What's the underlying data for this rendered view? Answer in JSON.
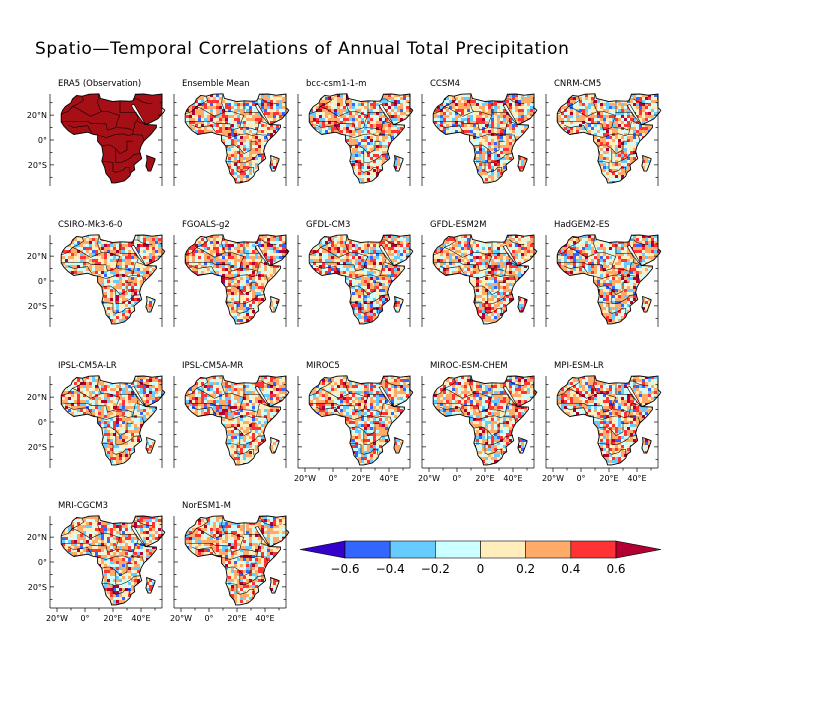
{
  "figure": {
    "title": "Spatio—Temporal Correlations of Annual Total Precipitation"
  },
  "axes": {
    "lat_ticks": [
      "20°N",
      "0°",
      "20°S"
    ],
    "lon_ticks": [
      "20°W",
      "0°",
      "20°E",
      "40°E"
    ]
  },
  "panels": [
    {
      "title": "ERA5 (Observation)",
      "field": "uniform-high"
    },
    {
      "title": "Ensemble Mean",
      "field": "mixed"
    },
    {
      "title": "bcc-csm1-1-m",
      "field": "mixed"
    },
    {
      "title": "CCSM4",
      "field": "mixed"
    },
    {
      "title": "CNRM-CM5",
      "field": "mixed"
    },
    {
      "title": "CSIRO-Mk3-6-0",
      "field": "mixed"
    },
    {
      "title": "FGOALS-g2",
      "field": "mixed"
    },
    {
      "title": "GFDL-CM3",
      "field": "mixed"
    },
    {
      "title": "GFDL-ESM2M",
      "field": "mixed"
    },
    {
      "title": "HadGEM2-ES",
      "field": "mixed"
    },
    {
      "title": "IPSL-CM5A-LR",
      "field": "mixed"
    },
    {
      "title": "IPSL-CM5A-MR",
      "field": "mixed"
    },
    {
      "title": "MIROC5",
      "field": "mixed"
    },
    {
      "title": "MIROC-ESM-CHEM",
      "field": "mixed"
    },
    {
      "title": "MPI-ESM-LR",
      "field": "mixed"
    },
    {
      "title": "MRI-CGCM3",
      "field": "mixed"
    },
    {
      "title": "NorESM1-M",
      "field": "mixed"
    }
  ],
  "colorbar": {
    "ticks": [
      "−0.6",
      "−0.4",
      "−0.2",
      "0",
      "0.2",
      "0.4",
      "0.6"
    ],
    "colors": [
      "#3300cc",
      "#3366ff",
      "#66ccff",
      "#ccffff",
      "#ffeebb",
      "#ffaa66",
      "#ff3333",
      "#b30033"
    ]
  },
  "colors": {
    "observation_fill": "#a50f15",
    "coastline": "#000000"
  }
}
